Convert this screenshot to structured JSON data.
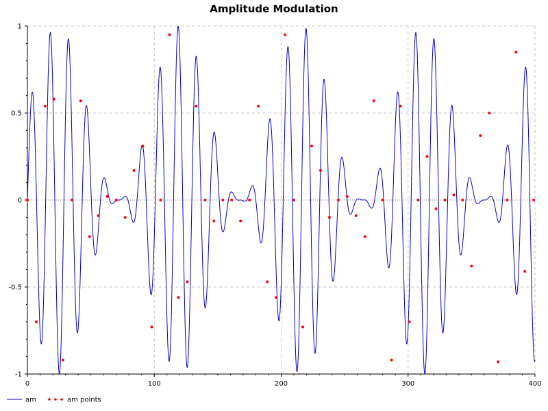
{
  "chart_data": {
    "type": "line",
    "title": "Amplitude Modulation",
    "xlabel": "",
    "ylabel": "",
    "xlim": [
      0,
      400
    ],
    "ylim": [
      -1,
      1
    ],
    "x_ticks": [
      0,
      100,
      200,
      300,
      400
    ],
    "x_tick_labels": [
      "0",
      "100",
      "200",
      "300",
      "400"
    ],
    "y_ticks": [
      -1,
      -0.5,
      0,
      0.5,
      1
    ],
    "y_tick_labels": [
      "-1",
      "-0.5",
      "0",
      "0.5",
      "1"
    ],
    "grid": true,
    "legend_position": "bottom-left",
    "series": [
      {
        "name": "am",
        "style": "line",
        "color": "#0000cc",
        "function": {
          "formula": "0.5*(1+sin(2*pi*t/96))*sin(2*pi*t/14.4)",
          "x_start": 0,
          "x_end": 400,
          "samples": 3201
        }
      },
      {
        "name": "am points",
        "style": "markers",
        "color": "#ff0000",
        "x": [
          0,
          7,
          14,
          21,
          28,
          35,
          42,
          49,
          56,
          63,
          70,
          77,
          84,
          91,
          98,
          105,
          112,
          119,
          126,
          133,
          140,
          147,
          154,
          161,
          168,
          175,
          182,
          189,
          196,
          203,
          210,
          217,
          224,
          231,
          238,
          245,
          252,
          259,
          266,
          273,
          280,
          287,
          294,
          301,
          308,
          315,
          322,
          329,
          336,
          343,
          350,
          357,
          364,
          371,
          378,
          385,
          392,
          399
        ],
        "y": [
          0,
          -0.7,
          0.54,
          0.58,
          -0.92,
          0,
          0.57,
          -0.21,
          -0.09,
          0.02,
          0,
          -0.1,
          0.17,
          0.31,
          -0.73,
          0,
          0.95,
          -0.56,
          -0.47,
          0.54,
          0,
          -0.12,
          0,
          0,
          -0.12,
          0,
          0.54,
          -0.47,
          -0.56,
          0.95,
          0,
          -0.73,
          0.31,
          0.17,
          -0.1,
          0,
          0.02,
          -0.09,
          -0.21,
          0.57,
          0,
          -0.92,
          0.54,
          -0.7,
          0,
          0.25,
          -0.05,
          0,
          0.03,
          0,
          -0.38,
          0.37,
          0.5,
          -0.93,
          0,
          0.85,
          -0.41,
          0
        ]
      }
    ]
  }
}
